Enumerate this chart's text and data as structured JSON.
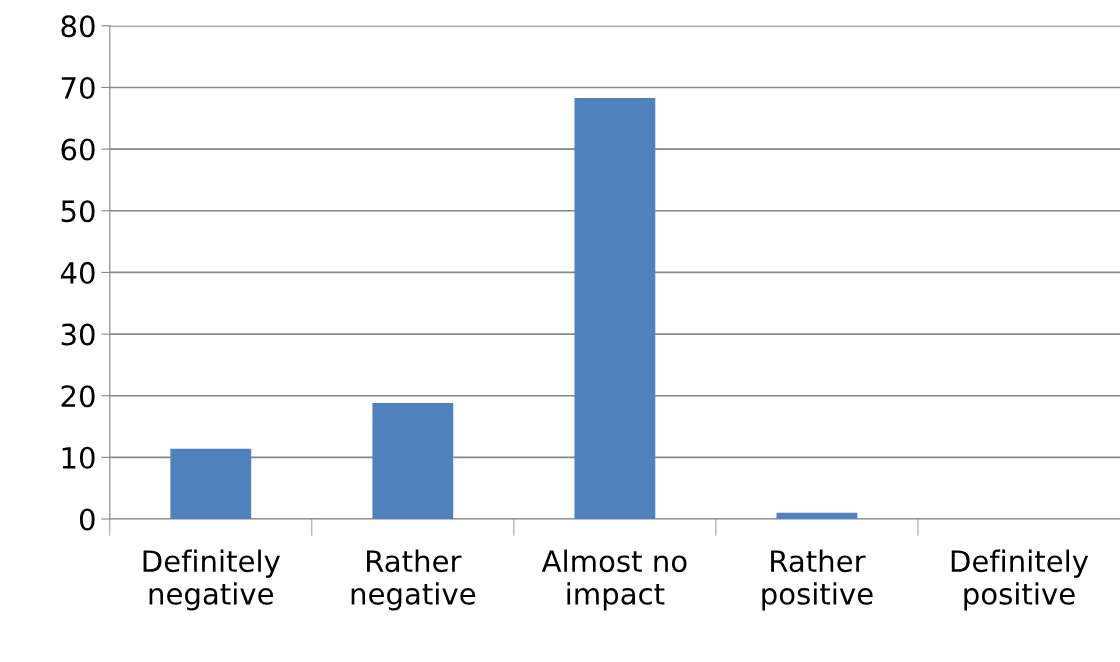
{
  "chart_data": {
    "type": "bar",
    "categories": [
      "Definitely negative",
      "Rather negative",
      "Almost no impact",
      "Rather positive",
      "Definitely positive"
    ],
    "values": [
      11.4,
      18.8,
      68.3,
      1.0,
      0
    ],
    "color": "#4f81bd",
    "ylim": [
      0,
      80
    ],
    "yticks": [
      0,
      10,
      20,
      30,
      40,
      50,
      60,
      70,
      80
    ],
    "grid": "y"
  }
}
